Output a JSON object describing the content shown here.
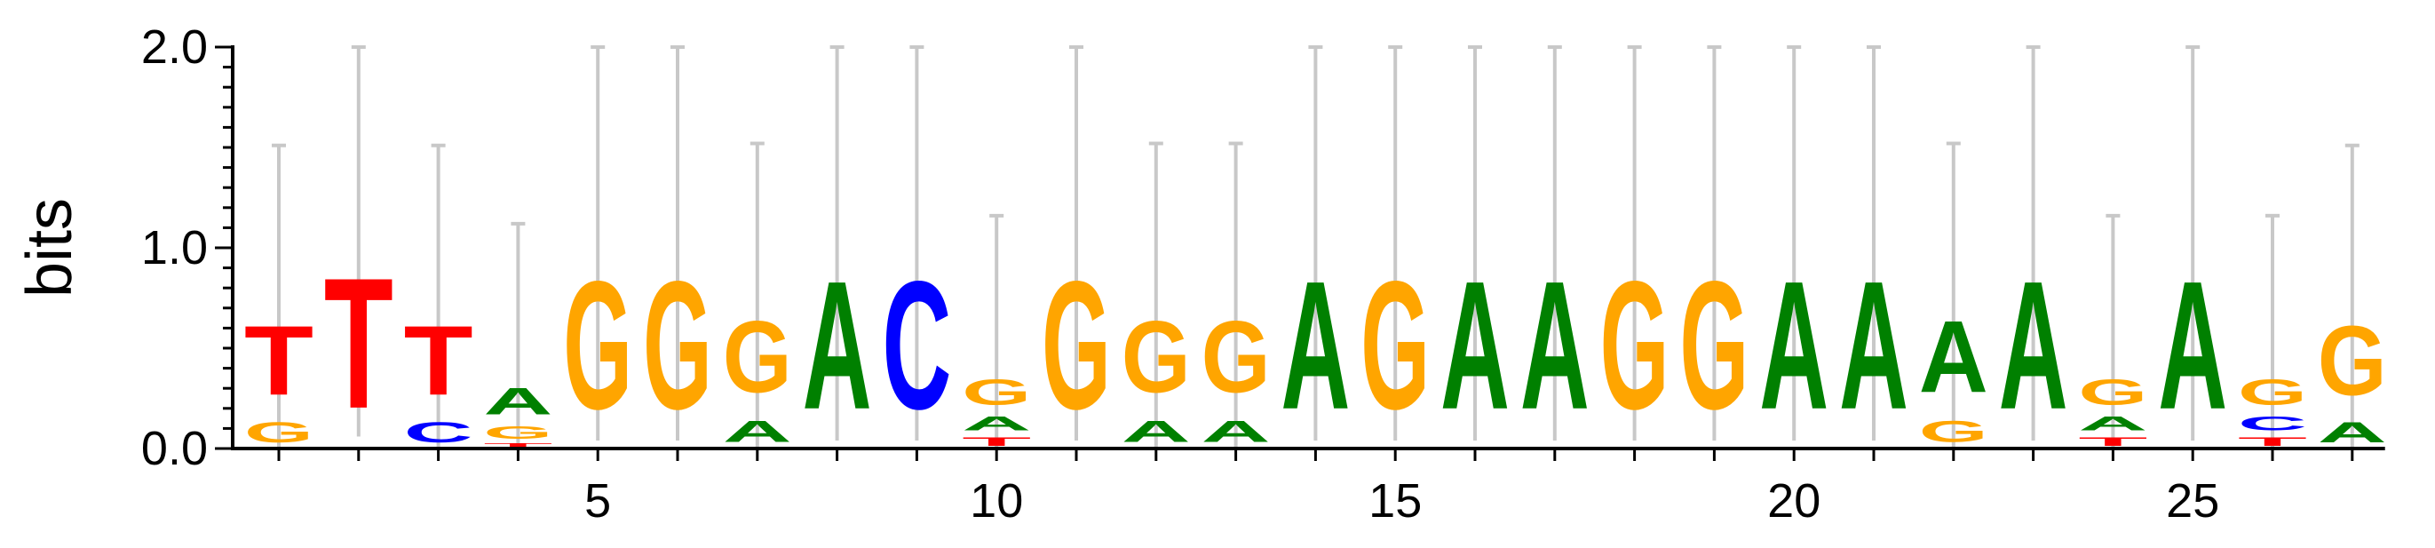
{
  "chart_data": {
    "type": "sequence-logo",
    "ylabel": "bits",
    "xlabel": "",
    "title": "",
    "ylim": [
      0,
      2
    ],
    "xlim": [
      0.5,
      27.5
    ],
    "y_ticks": [
      "0.0",
      "1.0",
      "2.0"
    ],
    "x_ticks": [
      5,
      10,
      15,
      20,
      25
    ],
    "colors": {
      "A": "#008000",
      "C": "#0000ff",
      "G": "#ffa500",
      "T": "#ff0000"
    },
    "positions": [
      {
        "pos": 1,
        "error": 0.8,
        "stack": [
          {
            "letter": "G",
            "bits": 0.16
          },
          {
            "letter": "T",
            "bits": 0.55
          }
        ]
      },
      {
        "pos": 2,
        "error": 0.98,
        "stack": [
          {
            "letter": "T",
            "bits": 1.04
          }
        ]
      },
      {
        "pos": 3,
        "error": 0.8,
        "stack": [
          {
            "letter": "C",
            "bits": 0.16
          },
          {
            "letter": "T",
            "bits": 0.55
          }
        ]
      },
      {
        "pos": 4,
        "error": 0.78,
        "stack": [
          {
            "letter": "T",
            "bits": 0.03
          },
          {
            "letter": "G",
            "bits": 0.1
          },
          {
            "letter": "A",
            "bits": 0.21
          }
        ]
      },
      {
        "pos": 5,
        "error": 0.98,
        "stack": [
          {
            "letter": "G",
            "bits": 1.02
          }
        ]
      },
      {
        "pos": 6,
        "error": 0.98,
        "stack": [
          {
            "letter": "G",
            "bits": 1.02
          }
        ]
      },
      {
        "pos": 7,
        "error": 0.78,
        "stack": [
          {
            "letter": "A",
            "bits": 0.17
          },
          {
            "letter": "G",
            "bits": 0.57
          }
        ]
      },
      {
        "pos": 8,
        "error": 0.98,
        "stack": [
          {
            "letter": "A",
            "bits": 1.02
          }
        ]
      },
      {
        "pos": 9,
        "error": 0.98,
        "stack": [
          {
            "letter": "C",
            "bits": 1.02
          }
        ]
      },
      {
        "pos": 10,
        "error": 0.78,
        "stack": [
          {
            "letter": "T",
            "bits": 0.07
          },
          {
            "letter": "A",
            "bits": 0.11
          },
          {
            "letter": "G",
            "bits": 0.2
          }
        ]
      },
      {
        "pos": 11,
        "error": 0.98,
        "stack": [
          {
            "letter": "G",
            "bits": 1.02
          }
        ]
      },
      {
        "pos": 12,
        "error": 0.78,
        "stack": [
          {
            "letter": "A",
            "bits": 0.17
          },
          {
            "letter": "G",
            "bits": 0.57
          }
        ]
      },
      {
        "pos": 13,
        "error": 0.78,
        "stack": [
          {
            "letter": "A",
            "bits": 0.17
          },
          {
            "letter": "G",
            "bits": 0.57
          }
        ]
      },
      {
        "pos": 14,
        "error": 0.98,
        "stack": [
          {
            "letter": "A",
            "bits": 1.02
          }
        ]
      },
      {
        "pos": 15,
        "error": 0.98,
        "stack": [
          {
            "letter": "G",
            "bits": 1.02
          }
        ]
      },
      {
        "pos": 16,
        "error": 0.98,
        "stack": [
          {
            "letter": "A",
            "bits": 1.02
          }
        ]
      },
      {
        "pos": 17,
        "error": 0.98,
        "stack": [
          {
            "letter": "A",
            "bits": 1.02
          }
        ]
      },
      {
        "pos": 18,
        "error": 0.98,
        "stack": [
          {
            "letter": "G",
            "bits": 1.02
          }
        ]
      },
      {
        "pos": 19,
        "error": 0.98,
        "stack": [
          {
            "letter": "G",
            "bits": 1.02
          }
        ]
      },
      {
        "pos": 20,
        "error": 0.98,
        "stack": [
          {
            "letter": "A",
            "bits": 1.02
          }
        ]
      },
      {
        "pos": 21,
        "error": 0.98,
        "stack": [
          {
            "letter": "A",
            "bits": 1.02
          }
        ]
      },
      {
        "pos": 22,
        "error": 0.78,
        "stack": [
          {
            "letter": "G",
            "bits": 0.17
          },
          {
            "letter": "A",
            "bits": 0.57
          }
        ]
      },
      {
        "pos": 23,
        "error": 0.98,
        "stack": [
          {
            "letter": "A",
            "bits": 1.02
          }
        ]
      },
      {
        "pos": 24,
        "error": 0.78,
        "stack": [
          {
            "letter": "T",
            "bits": 0.07
          },
          {
            "letter": "A",
            "bits": 0.11
          },
          {
            "letter": "G",
            "bits": 0.2
          }
        ]
      },
      {
        "pos": 25,
        "error": 0.98,
        "stack": [
          {
            "letter": "A",
            "bits": 1.02
          }
        ]
      },
      {
        "pos": 26,
        "error": 0.78,
        "stack": [
          {
            "letter": "T",
            "bits": 0.07
          },
          {
            "letter": "C",
            "bits": 0.11
          },
          {
            "letter": "G",
            "bits": 0.2
          }
        ]
      },
      {
        "pos": 27,
        "error": 0.8,
        "stack": [
          {
            "letter": "A",
            "bits": 0.16
          },
          {
            "letter": "G",
            "bits": 0.55
          }
        ]
      }
    ]
  }
}
